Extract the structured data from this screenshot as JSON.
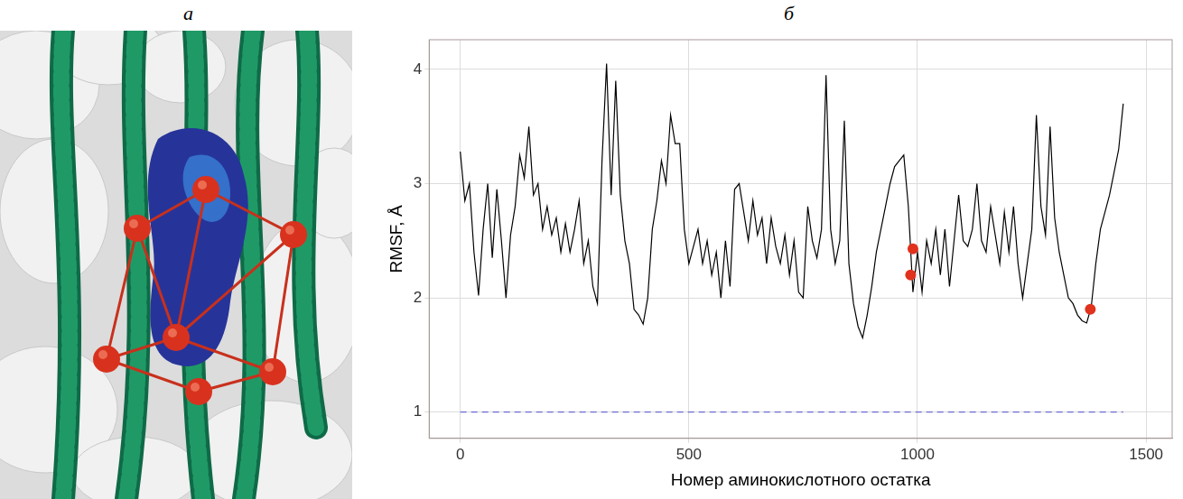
{
  "panel_labels": [
    "а",
    "б"
  ],
  "chart_data": {
    "type": "line",
    "x_label": "Номер аминокислотного остатка",
    "y_label": "RMSF, Å",
    "xlim": [
      -68,
      1557
    ],
    "xticks": [
      0,
      500,
      1000,
      1500
    ],
    "ylim": [
      0.77,
      4.26
    ],
    "yticks": [
      1,
      2,
      3,
      4
    ],
    "grid": true,
    "series": [
      {
        "type": "line",
        "color": "#000000",
        "line_style": "solid",
        "marker": "none",
        "x": [
          0,
          10,
          20,
          30,
          40,
          50,
          60,
          70,
          80,
          90,
          100,
          110,
          120,
          130,
          140,
          150,
          160,
          170,
          180,
          190,
          200,
          210,
          220,
          230,
          240,
          250,
          260,
          270,
          280,
          290,
          300,
          310,
          320,
          330,
          340,
          350,
          360,
          370,
          380,
          390,
          400,
          410,
          420,
          430,
          440,
          450,
          460,
          470,
          480,
          490,
          500,
          510,
          520,
          530,
          540,
          550,
          560,
          570,
          580,
          590,
          600,
          610,
          620,
          630,
          640,
          650,
          660,
          670,
          680,
          690,
          700,
          710,
          720,
          730,
          740,
          750,
          760,
          770,
          780,
          790,
          800,
          810,
          820,
          830,
          840,
          850,
          860,
          870,
          880,
          890,
          900,
          910,
          920,
          930,
          940,
          950,
          960,
          970,
          980,
          990,
          1000,
          1010,
          1020,
          1030,
          1040,
          1050,
          1060,
          1070,
          1080,
          1090,
          1100,
          1110,
          1120,
          1130,
          1140,
          1150,
          1160,
          1170,
          1180,
          1190,
          1200,
          1210,
          1220,
          1230,
          1240,
          1250,
          1260,
          1270,
          1280,
          1290,
          1300,
          1310,
          1320,
          1330,
          1340,
          1350,
          1360,
          1370,
          1380,
          1390,
          1400,
          1410,
          1420,
          1430,
          1440,
          1450
        ],
        "values": [
          3.28,
          2.85,
          3.0,
          2.4,
          2.02,
          2.6,
          3.0,
          2.35,
          2.95,
          2.5,
          2.0,
          2.55,
          2.8,
          3.25,
          3.05,
          3.5,
          2.9,
          3.0,
          2.6,
          2.8,
          2.55,
          2.7,
          2.4,
          2.65,
          2.4,
          2.6,
          2.85,
          2.3,
          2.5,
          2.1,
          1.95,
          3.2,
          4.05,
          2.9,
          3.9,
          2.9,
          2.5,
          2.3,
          1.9,
          1.85,
          1.77,
          2.0,
          2.6,
          2.85,
          3.2,
          3.0,
          3.6,
          3.35,
          3.35,
          2.6,
          2.3,
          2.45,
          2.6,
          2.3,
          2.5,
          2.2,
          2.4,
          2.0,
          2.5,
          2.1,
          2.95,
          3.0,
          2.75,
          2.5,
          2.85,
          2.55,
          2.7,
          2.3,
          2.7,
          2.45,
          2.3,
          2.55,
          2.2,
          2.5,
          2.05,
          2.0,
          2.8,
          2.5,
          2.35,
          2.6,
          3.95,
          2.6,
          2.3,
          2.5,
          3.55,
          2.3,
          1.95,
          1.75,
          1.65,
          1.85,
          2.1,
          2.4,
          2.6,
          2.8,
          3.0,
          3.15,
          3.2,
          3.25,
          2.8,
          2.05,
          2.4,
          2.05,
          2.5,
          2.3,
          2.6,
          2.2,
          2.6,
          2.1,
          2.5,
          2.9,
          2.5,
          2.45,
          2.6,
          3.0,
          2.5,
          2.4,
          2.8,
          2.55,
          2.3,
          2.75,
          2.4,
          2.8,
          2.3,
          2.0,
          2.3,
          2.6,
          3.6,
          2.8,
          2.55,
          3.5,
          2.7,
          2.4,
          2.2,
          2.0,
          1.95,
          1.85,
          1.8,
          1.78,
          1.92,
          2.3,
          2.6,
          2.75,
          2.9,
          3.1,
          3.3,
          3.7
        ]
      },
      {
        "type": "line",
        "color": "#6a6ad0",
        "line_style": "dashed",
        "marker": "none",
        "x": [
          0,
          1450
        ],
        "values": [
          1,
          1
        ]
      },
      {
        "type": "scatter",
        "color": "#e0321c",
        "marker": "circle",
        "x": [
          985,
          990,
          1378
        ],
        "values": [
          2.2,
          2.43,
          1.9
        ]
      }
    ]
  }
}
